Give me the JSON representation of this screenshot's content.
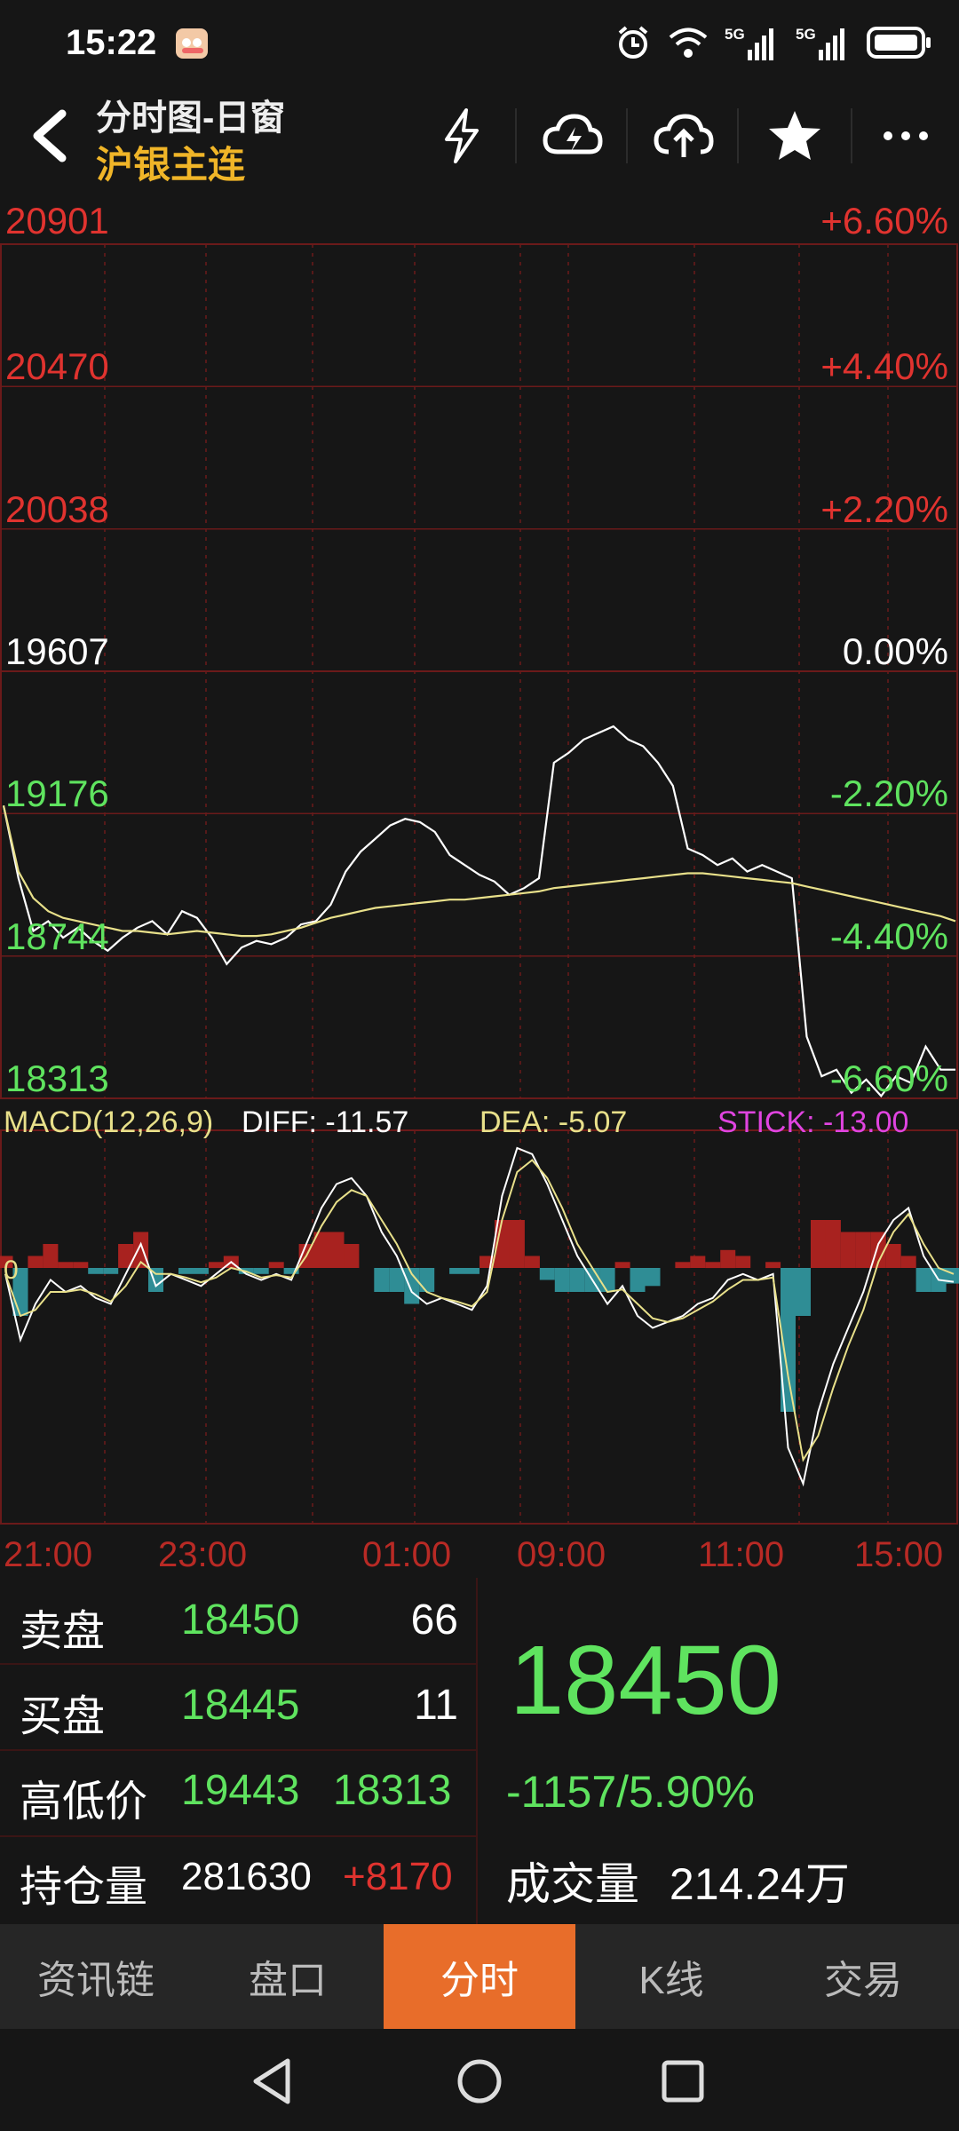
{
  "status": {
    "time": "15:22",
    "net1": "5G",
    "net2": "5G"
  },
  "header": {
    "title": "分时图-日窗",
    "subtitle": "沪银主连",
    "icons": [
      "lightning-icon",
      "cloud-lightning-icon",
      "cloud-upload-icon",
      "star-icon",
      "more-icon"
    ]
  },
  "chart": {
    "price_levels": [
      "20901",
      "20470",
      "20038",
      "19607",
      "19176",
      "18744",
      "18313"
    ],
    "percent_levels": [
      "+6.60%",
      "+4.40%",
      "+2.20%",
      "0.00%",
      "-2.20%",
      "-4.40%",
      "-6.60%"
    ],
    "macd": {
      "label": "MACD(12,26,9)",
      "diff": "DIFF: -11.57",
      "dea": "DEA: -5.07",
      "stick": "STICK: -13.00",
      "zero": "0"
    },
    "time_labels": [
      "21:00",
      "23:00",
      "01:00",
      "09:00",
      "11:00",
      "15:00"
    ],
    "colors": {
      "up": "#e0332f",
      "down": "#5fe35f",
      "avg_line": "#e8e08a",
      "price_line": "#ffffff",
      "macd_pos": "#a8221f",
      "macd_neg": "#2f8d95"
    }
  },
  "chart_data": [
    {
      "type": "line",
      "title": "",
      "series": [
        {
          "values": [
            19200,
            18980,
            18820,
            18850,
            18800,
            18830,
            18790,
            18760,
            18800,
            18830,
            18850,
            18810,
            18880,
            18860,
            18800,
            18720,
            18770,
            18790,
            18780,
            18800,
            18840,
            18850,
            18900,
            19000,
            19060,
            19100,
            19140,
            19160,
            19150,
            19120,
            19050,
            19020,
            18990,
            18970,
            18930,
            18950,
            18980,
            19330,
            19360,
            19400,
            19420,
            19440,
            19400,
            19380,
            19330,
            19260,
            19070,
            19050,
            19020,
            19040,
            19000,
            19020,
            19000,
            18980,
            18500,
            18380,
            18400,
            18330,
            18370,
            18320,
            18380,
            18360,
            18470,
            18400,
            18400
          ]
        },
        {
          "values": [
            19200,
            19000,
            18920,
            18880,
            18860,
            18850,
            18840,
            18830,
            18820,
            18820,
            18815,
            18810,
            18815,
            18820,
            18815,
            18810,
            18805,
            18805,
            18810,
            18820,
            18830,
            18845,
            18860,
            18870,
            18880,
            18890,
            18895,
            18900,
            18905,
            18910,
            18915,
            18915,
            18920,
            18925,
            18930,
            18935,
            18940,
            18950,
            18955,
            18960,
            18965,
            18970,
            18975,
            18980,
            18985,
            18990,
            18995,
            18995,
            18990,
            18985,
            18980,
            18975,
            18970,
            18965,
            18955,
            18945,
            18935,
            18925,
            18915,
            18905,
            18895,
            18885,
            18875,
            18865,
            18850
          ]
        }
      ],
      "ylim": [
        18313,
        20901
      ],
      "x_ticks": [
        "21:00",
        "23:00",
        "01:00",
        "09:00",
        "11:00",
        "15:00"
      ]
    },
    {
      "type": "bar",
      "title": "MACD(12,26,9)",
      "series": [
        {
          "name": "DIFF",
          "values": [
            -5,
            -60,
            -30,
            -10,
            -20,
            -15,
            -25,
            -30,
            -5,
            20,
            -15,
            -5,
            -10,
            -15,
            -5,
            5,
            -5,
            -10,
            -5,
            -10,
            20,
            50,
            70,
            75,
            60,
            30,
            10,
            -20,
            -30,
            -25,
            -30,
            -35,
            -15,
            60,
            100,
            95,
            70,
            40,
            10,
            -10,
            -30,
            -15,
            -40,
            -50,
            -45,
            -40,
            -30,
            -25,
            -10,
            -5,
            -10,
            -5,
            -150,
            -180,
            -120,
            -80,
            -50,
            -20,
            20,
            40,
            50,
            10,
            -10,
            -11.57
          ]
        },
        {
          "name": "DEA",
          "values": [
            -5,
            -40,
            -35,
            -20,
            -20,
            -18,
            -22,
            -28,
            -15,
            5,
            -5,
            -5,
            -8,
            -12,
            -8,
            0,
            -3,
            -8,
            -6,
            -8,
            10,
            35,
            55,
            65,
            60,
            40,
            20,
            -5,
            -20,
            -25,
            -28,
            -32,
            -20,
            40,
            80,
            90,
            75,
            50,
            20,
            0,
            -20,
            -18,
            -30,
            -42,
            -45,
            -42,
            -35,
            -28,
            -18,
            -10,
            -10,
            -8,
            -90,
            -160,
            -140,
            -100,
            -65,
            -35,
            5,
            30,
            45,
            20,
            0,
            -5.07
          ]
        },
        {
          "name": "STICK",
          "values": [
            10,
            -40,
            10,
            20,
            5,
            5,
            -5,
            -5,
            20,
            30,
            -20,
            0,
            -5,
            -5,
            5,
            10,
            -5,
            -5,
            5,
            -5,
            20,
            30,
            30,
            20,
            0,
            -20,
            -20,
            -30,
            -20,
            0,
            -5,
            -5,
            10,
            40,
            40,
            10,
            -10,
            -20,
            -20,
            -20,
            -20,
            5,
            -20,
            -15,
            0,
            5,
            10,
            5,
            15,
            10,
            0,
            5,
            -120,
            -40,
            40,
            40,
            30,
            30,
            30,
            20,
            10,
            -20,
            -20,
            -13
          ]
        }
      ],
      "x_ticks": [
        "21:00",
        "23:00",
        "01:00",
        "09:00",
        "11:00",
        "15:00"
      ]
    }
  ],
  "info": {
    "sell_label": "卖盘",
    "sell_price": "18450",
    "sell_qty": "66",
    "buy_label": "买盘",
    "buy_price": "18445",
    "buy_qty": "11",
    "hl_label": "高低价",
    "high": "19443",
    "low": "18313",
    "oi_label": "持仓量",
    "oi": "281630",
    "oi_change": "+8170",
    "last_price": "18450",
    "change": "-1157/5.90%",
    "volume_label": "成交量",
    "volume": "214.24万"
  },
  "tabs": [
    "资讯链",
    "盘口",
    "分时",
    "K线",
    "交易"
  ],
  "active_tab": "分时",
  "nav": [
    "back-icon",
    "home-icon",
    "recents-icon"
  ]
}
